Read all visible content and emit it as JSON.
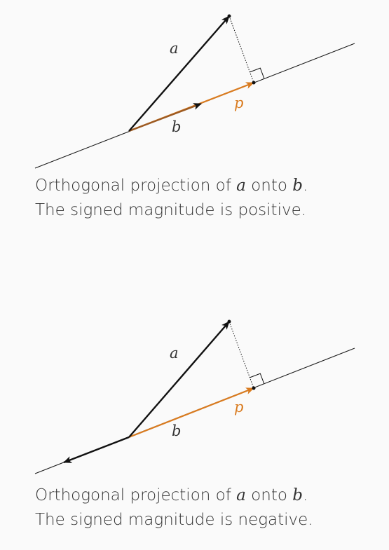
{
  "colors": {
    "text": "#333333",
    "vector": "#111111",
    "projection": "#d97b1f",
    "projection_dark": "#9c5a22",
    "line": "#1a1a1a"
  },
  "panels": [
    {
      "label_a": "a",
      "label_b": "b",
      "label_p": "p",
      "caption": {
        "line1_prefix": "Orthogonal projection of",
        "var_a": "a",
        "line1_mid": "onto",
        "var_b": "b",
        "line1_suffix": ".",
        "line2": "The signed magnitude is positive."
      }
    },
    {
      "label_a": "a",
      "label_b": "b",
      "label_p": "p",
      "caption": {
        "line1_prefix": "Orthogonal projection of",
        "var_a": "a",
        "line1_mid": "onto",
        "var_b": "b",
        "line1_suffix": ".",
        "line2": "The signed magnitude is negative."
      }
    }
  ]
}
